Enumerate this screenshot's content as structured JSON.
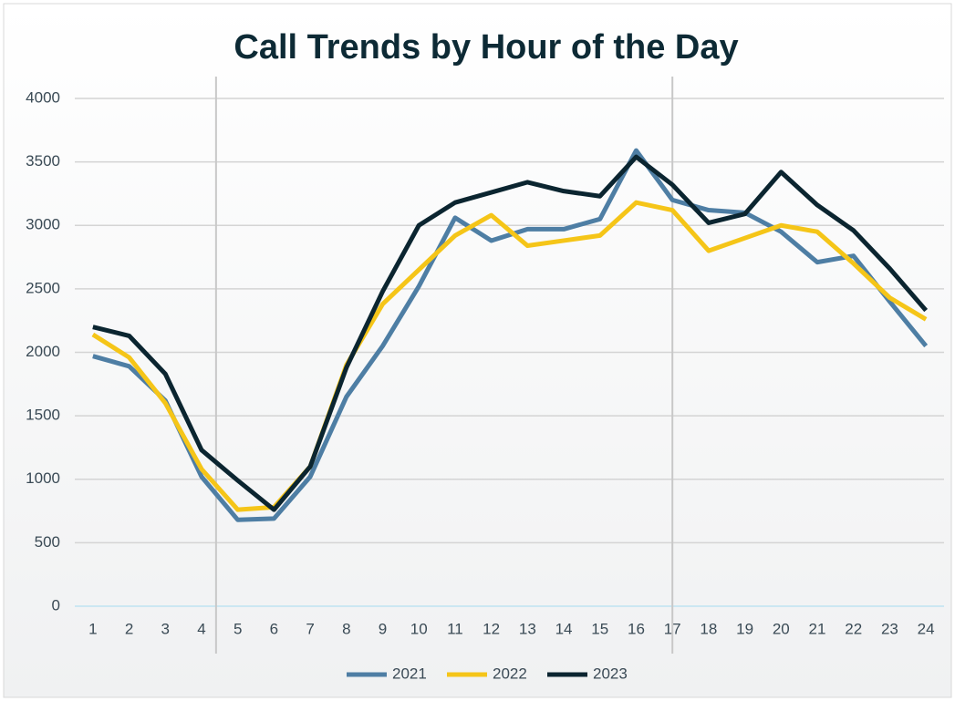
{
  "chart_data": {
    "type": "line",
    "title": "Call Trends by Hour of the Day",
    "x": [
      1,
      2,
      3,
      4,
      5,
      6,
      7,
      8,
      9,
      10,
      11,
      12,
      13,
      14,
      15,
      16,
      17,
      18,
      19,
      20,
      21,
      22,
      23,
      24
    ],
    "xlim": [
      0.5,
      24.5
    ],
    "xticks": [
      1,
      2,
      3,
      4,
      5,
      6,
      7,
      8,
      9,
      10,
      11,
      12,
      13,
      14,
      15,
      16,
      17,
      18,
      19,
      20,
      21,
      22,
      23,
      24
    ],
    "ylim": [
      0,
      4000
    ],
    "yticks": [
      0,
      500,
      1000,
      1500,
      2000,
      2500,
      3000,
      3500,
      4000
    ],
    "grid": true,
    "legend": "bottom",
    "reference_lines_x": [
      4.4,
      17
    ],
    "series": [
      {
        "name": "2021",
        "color": "#4e7ea4",
        "values": [
          1970,
          1890,
          1620,
          1020,
          680,
          690,
          1020,
          1650,
          2050,
          2520,
          3060,
          2880,
          2970,
          2970,
          3050,
          3590,
          3200,
          3120,
          3100,
          2950,
          2710,
          2760,
          2400,
          2050
        ]
      },
      {
        "name": "2022",
        "color": "#f5c518",
        "values": [
          2140,
          1960,
          1600,
          1080,
          760,
          780,
          1100,
          1900,
          2380,
          2650,
          2920,
          3080,
          2840,
          2880,
          2920,
          3180,
          3120,
          2800,
          2900,
          3000,
          2950,
          2700,
          2430,
          2260
        ]
      },
      {
        "name": "2023",
        "color": "#0b2530",
        "values": [
          2200,
          2130,
          1830,
          1230,
          990,
          760,
          1100,
          1880,
          2480,
          3000,
          3180,
          3260,
          3340,
          3270,
          3230,
          3540,
          3320,
          3020,
          3090,
          3420,
          3160,
          2960,
          2660,
          2330
        ]
      }
    ]
  }
}
